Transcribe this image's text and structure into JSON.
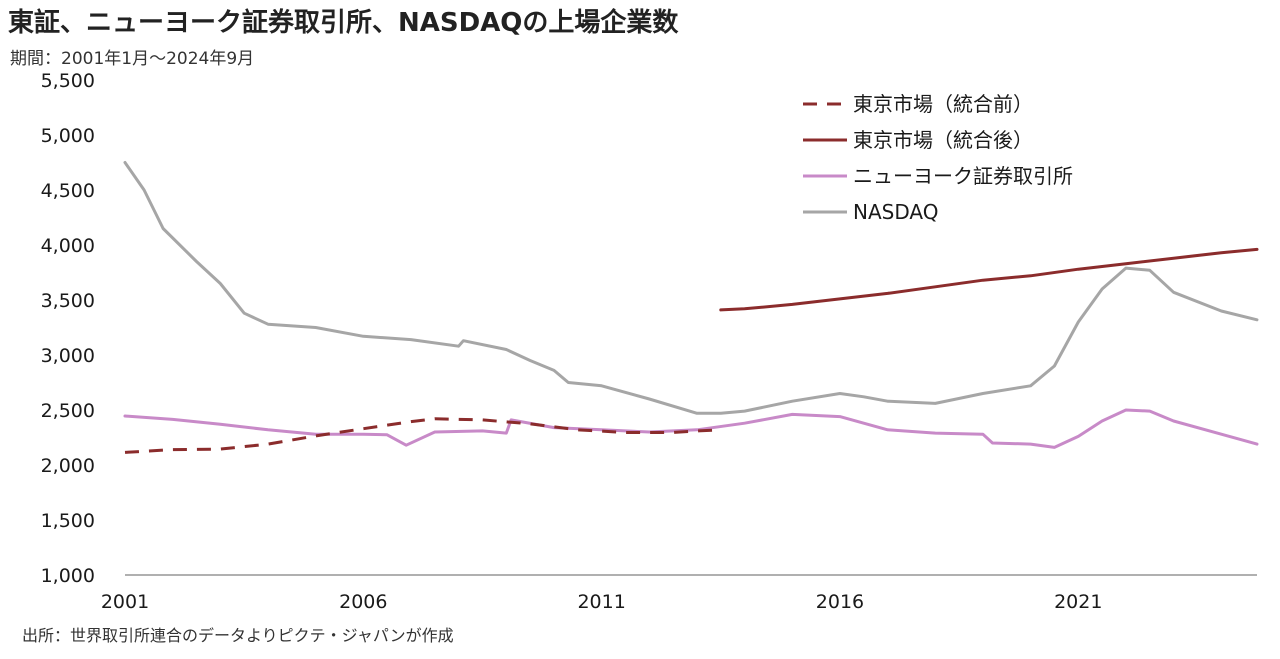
{
  "title": "東証、ニューヨーク証券取引所、NASDAQの上場企業数",
  "subtitle": "期間：2001年1月～2024年9月",
  "source": "出所：世界取引所連合のデータよりピクテ・ジャパンが作成",
  "chart_data": {
    "type": "line",
    "x_unit": "year (decimal)",
    "xlim": [
      2001.0,
      2024.75
    ],
    "ylim": [
      1000,
      5500
    ],
    "y_ticks": [
      1000,
      1500,
      2000,
      2500,
      3000,
      3500,
      4000,
      4500,
      5000,
      5500
    ],
    "y_tick_labels": [
      "1,000",
      "1,500",
      "2,000",
      "2,500",
      "3,000",
      "3,500",
      "4,000",
      "4,500",
      "5,000",
      "5,500"
    ],
    "x_ticks": [
      2001,
      2006,
      2011,
      2016,
      2021
    ],
    "x_tick_labels": [
      "2001",
      "2006",
      "2011",
      "2016",
      "2021"
    ],
    "legend_position": "top-right",
    "series": [
      {
        "name": "東京市場（統合前）",
        "color": "#8B2C2C",
        "style": "dashed",
        "points": [
          [
            2001.0,
            2115
          ],
          [
            2002.0,
            2140
          ],
          [
            2003.0,
            2145
          ],
          [
            2004.0,
            2190
          ],
          [
            2005.0,
            2265
          ],
          [
            2006.0,
            2330
          ],
          [
            2007.0,
            2395
          ],
          [
            2007.5,
            2420
          ],
          [
            2008.5,
            2410
          ],
          [
            2009.5,
            2375
          ],
          [
            2010.5,
            2320
          ],
          [
            2011.5,
            2295
          ],
          [
            2012.5,
            2295
          ],
          [
            2013.0,
            2310
          ],
          [
            2013.5,
            2320
          ]
        ]
      },
      {
        "name": "東京市場（統合後）",
        "color": "#8B2C2C",
        "style": "solid",
        "points": [
          [
            2013.5,
            3410
          ],
          [
            2014.0,
            3420
          ],
          [
            2015.0,
            3460
          ],
          [
            2016.0,
            3510
          ],
          [
            2017.0,
            3560
          ],
          [
            2018.0,
            3620
          ],
          [
            2019.0,
            3680
          ],
          [
            2020.0,
            3720
          ],
          [
            2021.0,
            3780
          ],
          [
            2022.0,
            3830
          ],
          [
            2023.0,
            3880
          ],
          [
            2024.0,
            3930
          ],
          [
            2024.75,
            3960
          ]
        ]
      },
      {
        "name": "ニューヨーク証券取引所",
        "color": "#C88AC8",
        "style": "solid",
        "points": [
          [
            2001.0,
            2445
          ],
          [
            2002.0,
            2415
          ],
          [
            2003.0,
            2370
          ],
          [
            2004.0,
            2320
          ],
          [
            2005.0,
            2280
          ],
          [
            2006.0,
            2280
          ],
          [
            2006.5,
            2275
          ],
          [
            2006.9,
            2180
          ],
          [
            2007.5,
            2300
          ],
          [
            2008.5,
            2310
          ],
          [
            2009.0,
            2290
          ],
          [
            2009.1,
            2410
          ],
          [
            2010.0,
            2340
          ],
          [
            2011.0,
            2320
          ],
          [
            2012.0,
            2300
          ],
          [
            2013.0,
            2320
          ],
          [
            2014.0,
            2380
          ],
          [
            2015.0,
            2460
          ],
          [
            2016.0,
            2440
          ],
          [
            2017.0,
            2320
          ],
          [
            2018.0,
            2290
          ],
          [
            2019.0,
            2280
          ],
          [
            2019.2,
            2200
          ],
          [
            2020.0,
            2190
          ],
          [
            2020.5,
            2160
          ],
          [
            2021.0,
            2260
          ],
          [
            2021.5,
            2400
          ],
          [
            2022.0,
            2500
          ],
          [
            2022.5,
            2490
          ],
          [
            2023.0,
            2400
          ],
          [
            2024.0,
            2280
          ],
          [
            2024.75,
            2190
          ]
        ]
      },
      {
        "name": "NASDAQ",
        "color": "#A6A6A6",
        "style": "solid",
        "points": [
          [
            2001.0,
            4750
          ],
          [
            2001.4,
            4500
          ],
          [
            2001.8,
            4150
          ],
          [
            2002.5,
            3850
          ],
          [
            2003.0,
            3650
          ],
          [
            2003.5,
            3380
          ],
          [
            2004.0,
            3280
          ],
          [
            2005.0,
            3250
          ],
          [
            2006.0,
            3170
          ],
          [
            2007.0,
            3140
          ],
          [
            2008.0,
            3080
          ],
          [
            2008.1,
            3130
          ],
          [
            2009.0,
            3050
          ],
          [
            2009.5,
            2950
          ],
          [
            2010.0,
            2860
          ],
          [
            2010.3,
            2750
          ],
          [
            2011.0,
            2720
          ],
          [
            2012.0,
            2600
          ],
          [
            2013.0,
            2470
          ],
          [
            2013.5,
            2470
          ],
          [
            2014.0,
            2490
          ],
          [
            2015.0,
            2580
          ],
          [
            2016.0,
            2650
          ],
          [
            2016.5,
            2620
          ],
          [
            2017.0,
            2580
          ],
          [
            2018.0,
            2560
          ],
          [
            2019.0,
            2650
          ],
          [
            2020.0,
            2720
          ],
          [
            2020.5,
            2900
          ],
          [
            2021.0,
            3300
          ],
          [
            2021.5,
            3600
          ],
          [
            2022.0,
            3790
          ],
          [
            2022.5,
            3770
          ],
          [
            2023.0,
            3570
          ],
          [
            2024.0,
            3400
          ],
          [
            2024.75,
            3320
          ]
        ]
      }
    ]
  }
}
